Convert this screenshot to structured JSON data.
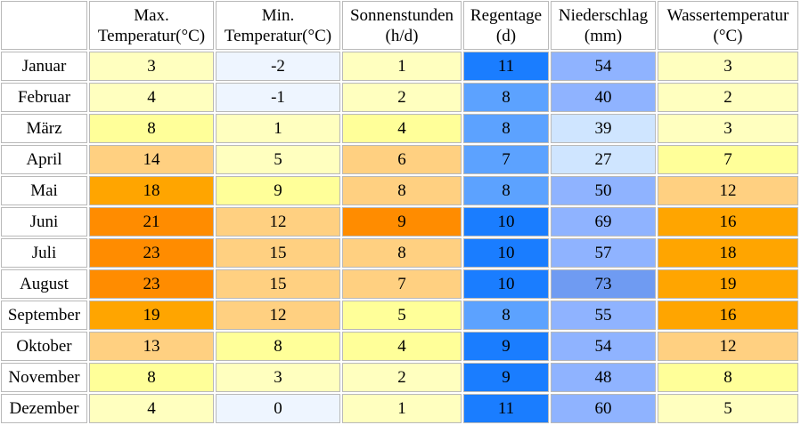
{
  "colors": {
    "pale_blue": "#eef5ff",
    "pale_yellow": "#ffffc2",
    "yellow": "#ffff99",
    "light_orange": "#ffd081",
    "orange": "#ffa500",
    "dark_orange": "#ff8c00",
    "mid_orange": "#ffbf55",
    "blue_strong": "#1a7dff",
    "blue_mid": "#5ca2ff",
    "blue_light": "#cfe5ff",
    "blue_pale": "#dcecff",
    "periwinkle": "#8fb3ff",
    "periwinkle_dark": "#6f9bf2"
  },
  "table": {
    "headers": [
      {
        "line1": "Max.",
        "line2": "Temperatur(°C)"
      },
      {
        "line1": "Min.",
        "line2": "Temperatur(°C)"
      },
      {
        "line1": "Sonnenstunden",
        "line2": "(h/d)"
      },
      {
        "line1": "Regentage",
        "line2": "(d)"
      },
      {
        "line1": "Niederschlag",
        "line2": "(mm)"
      },
      {
        "line1": "Wassertemperatur",
        "line2": "(°C)"
      }
    ],
    "rows": [
      {
        "month": "Januar",
        "values": [
          "3",
          "-2",
          "1",
          "11",
          "54",
          "3"
        ],
        "colors": [
          "#ffffbf",
          "#eef5ff",
          "#ffffbf",
          "#1a7dff",
          "#8fb3ff",
          "#ffffbf"
        ]
      },
      {
        "month": "Februar",
        "values": [
          "4",
          "-1",
          "2",
          "8",
          "40",
          "2"
        ],
        "colors": [
          "#ffffbf",
          "#eef5ff",
          "#ffffbf",
          "#5ca2ff",
          "#8fb3ff",
          "#ffffbf"
        ]
      },
      {
        "month": "März",
        "values": [
          "8",
          "1",
          "4",
          "8",
          "39",
          "3"
        ],
        "colors": [
          "#ffff99",
          "#ffffbf",
          "#ffff99",
          "#5ca2ff",
          "#cfe5ff",
          "#ffffbf"
        ]
      },
      {
        "month": "April",
        "values": [
          "14",
          "5",
          "6",
          "7",
          "27",
          "7"
        ],
        "colors": [
          "#ffd081",
          "#ffffbf",
          "#ffd081",
          "#5ca2ff",
          "#cfe5ff",
          "#ffff99"
        ]
      },
      {
        "month": "Mai",
        "values": [
          "18",
          "9",
          "8",
          "8",
          "50",
          "12"
        ],
        "colors": [
          "#ffa500",
          "#ffff99",
          "#ffd081",
          "#5ca2ff",
          "#8fb3ff",
          "#ffd081"
        ]
      },
      {
        "month": "Juni",
        "values": [
          "21",
          "12",
          "9",
          "10",
          "69",
          "16"
        ],
        "colors": [
          "#ff8c00",
          "#ffd081",
          "#ff8c00",
          "#1a7dff",
          "#8fb3ff",
          "#ffa500"
        ]
      },
      {
        "month": "Juli",
        "values": [
          "23",
          "15",
          "8",
          "10",
          "57",
          "18"
        ],
        "colors": [
          "#ff8c00",
          "#ffd081",
          "#ffd081",
          "#1a7dff",
          "#8fb3ff",
          "#ffa500"
        ]
      },
      {
        "month": "August",
        "values": [
          "23",
          "15",
          "7",
          "10",
          "73",
          "19"
        ],
        "colors": [
          "#ff8c00",
          "#ffd081",
          "#ffd081",
          "#1a7dff",
          "#6f9bf2",
          "#ffa500"
        ]
      },
      {
        "month": "September",
        "values": [
          "19",
          "12",
          "5",
          "8",
          "55",
          "16"
        ],
        "colors": [
          "#ffa500",
          "#ffd081",
          "#ffff99",
          "#5ca2ff",
          "#8fb3ff",
          "#ffa500"
        ]
      },
      {
        "month": "Oktober",
        "values": [
          "13",
          "8",
          "4",
          "9",
          "54",
          "12"
        ],
        "colors": [
          "#ffd081",
          "#ffff99",
          "#ffff99",
          "#1a7dff",
          "#8fb3ff",
          "#ffd081"
        ]
      },
      {
        "month": "November",
        "values": [
          "8",
          "3",
          "2",
          "9",
          "48",
          "8"
        ],
        "colors": [
          "#ffff99",
          "#ffffbf",
          "#ffffbf",
          "#1a7dff",
          "#8fb3ff",
          "#ffff99"
        ]
      },
      {
        "month": "Dezember",
        "values": [
          "4",
          "0",
          "1",
          "11",
          "60",
          "5"
        ],
        "colors": [
          "#ffffbf",
          "#eef5ff",
          "#ffffbf",
          "#1a7dff",
          "#8fb3ff",
          "#ffffbf"
        ]
      }
    ]
  }
}
